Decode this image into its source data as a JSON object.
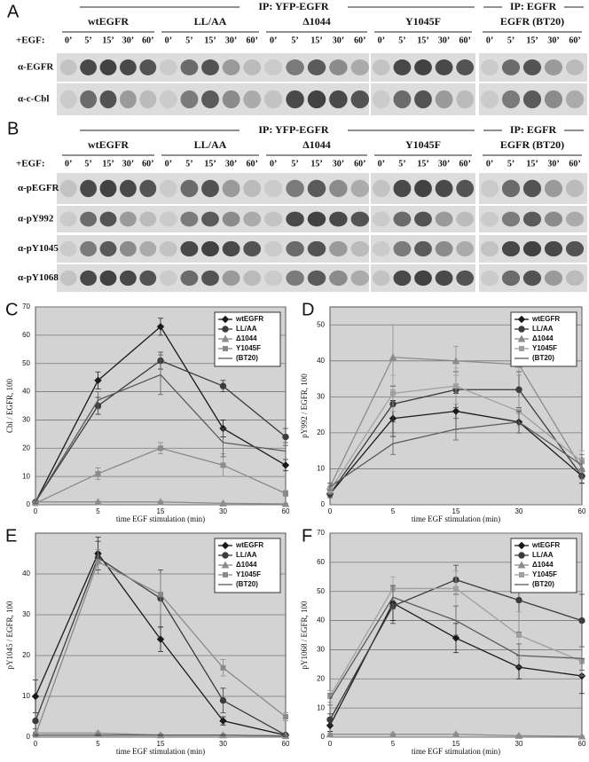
{
  "panel_labels": [
    "A",
    "B",
    "C",
    "D",
    "E",
    "F"
  ],
  "blot_a": {
    "ip_headers": [
      "IP: YFP-EGFR",
      "IP: EGFR"
    ],
    "groups": [
      "wtEGFR",
      "LL/AA",
      "Δ1044",
      "Y1045F",
      "EGFR (BT20)"
    ],
    "egf_label": "+EGF:",
    "times": [
      "0’",
      "5’",
      "15’",
      "30’",
      "60’"
    ],
    "rows": [
      "α-EGFR",
      "α-c-Cbl"
    ]
  },
  "blot_b": {
    "ip_headers": [
      "IP: YFP-EGFR",
      "IP: EGFR"
    ],
    "groups": [
      "wtEGFR",
      "LL/AA",
      "Δ1044",
      "Y1045F",
      "EGFR (BT20)"
    ],
    "egf_label": "+EGF:",
    "times": [
      "0’",
      "5’",
      "15’",
      "30’",
      "60’"
    ],
    "rows": [
      "α-pEGFR",
      "α-pY992",
      "α-pY1045",
      "α-pY1068"
    ]
  },
  "chart_data": [
    {
      "type": "line",
      "xlabel": "time EGF stimulation (min)",
      "ylabel": "Cbl / EGFR, 100",
      "categories": [
        "0",
        "5",
        "15",
        "30",
        "60"
      ],
      "ylim": [
        0,
        70
      ],
      "yticks": [
        0,
        10,
        20,
        30,
        40,
        50,
        60,
        70
      ],
      "grid": true,
      "legend": "upper right",
      "series": [
        {
          "name": "wtEGFR",
          "color": "#1a1a1a",
          "marker": "diamond",
          "values": [
            1,
            44,
            63,
            27,
            14
          ],
          "errors": [
            0.5,
            3,
            3,
            3,
            2
          ]
        },
        {
          "name": "LL/AA",
          "color": "#3c3c3c",
          "marker": "circle",
          "values": [
            1,
            35,
            51,
            42,
            24
          ],
          "errors": [
            0.5,
            3,
            3,
            2,
            3
          ]
        },
        {
          "name": "Δ1044",
          "color": "#8c8c8c",
          "marker": "triangle",
          "values": [
            1,
            1,
            1,
            0.5,
            0.3
          ],
          "errors": [
            0.3,
            0.3,
            0.3,
            0.2,
            0.2
          ]
        },
        {
          "name": "Y1045F",
          "color": "#8a8a8a",
          "marker": "square",
          "values": [
            0.5,
            11,
            20,
            14,
            4
          ],
          "errors": [
            0.3,
            2,
            2,
            4,
            1
          ]
        },
        {
          "name": "(BT20)",
          "color": "#5a5a5a",
          "marker": "none",
          "values": [
            1,
            37,
            46,
            22,
            19
          ],
          "errors": [
            0.5,
            3,
            7,
            5,
            3
          ]
        }
      ]
    },
    {
      "type": "line",
      "xlabel": "time EGF stimulation (min)",
      "ylabel": "pY992 / EGFR, 100",
      "categories": [
        "0",
        "5",
        "15",
        "30",
        "60"
      ],
      "ylim": [
        0,
        55
      ],
      "yticks": [
        0,
        10,
        20,
        30,
        40,
        50
      ],
      "grid": true,
      "legend": "upper right",
      "series": [
        {
          "name": "wtEGFR",
          "color": "#1a1a1a",
          "marker": "diamond",
          "values": [
            3,
            24,
            26,
            23,
            8
          ],
          "errors": [
            1,
            5,
            5,
            3,
            2
          ]
        },
        {
          "name": "LL/AA",
          "color": "#3c3c3c",
          "marker": "circle",
          "values": [
            3,
            28,
            32,
            32,
            8
          ],
          "errors": [
            1,
            5,
            5,
            5,
            2
          ]
        },
        {
          "name": "Δ1044",
          "color": "#8c8c8c",
          "marker": "triangle",
          "values": [
            5,
            41,
            40,
            39,
            10
          ],
          "errors": [
            1,
            9,
            4,
            3,
            3
          ]
        },
        {
          "name": "Y1045F",
          "color": "#a0a0a0",
          "marker": "square",
          "values": [
            4,
            31,
            33,
            26,
            12
          ],
          "errors": [
            1,
            5,
            5,
            4,
            3
          ]
        },
        {
          "name": "(BT20)",
          "color": "#5a5a5a",
          "marker": "none",
          "values": [
            5,
            17,
            21,
            23,
            11
          ],
          "errors": [
            1,
            3,
            3,
            3,
            3
          ]
        }
      ]
    },
    {
      "type": "line",
      "xlabel": "time EGF stimulation (min)",
      "ylabel": "pY1045 / EGFR, 100",
      "categories": [
        "0",
        "5",
        "15",
        "30",
        "60"
      ],
      "ylim": [
        0,
        50
      ],
      "yticks": [
        0,
        10,
        20,
        30,
        40
      ],
      "grid": true,
      "legend": "upper right",
      "series": [
        {
          "name": "wtEGFR",
          "color": "#1a1a1a",
          "marker": "diamond",
          "values": [
            10,
            45,
            24,
            4,
            0.5
          ],
          "errors": [
            4,
            4,
            3,
            1,
            0.3
          ]
        },
        {
          "name": "LL/AA",
          "color": "#3c3c3c",
          "marker": "circle",
          "values": [
            4,
            44,
            34,
            9,
            0.5
          ],
          "errors": [
            2,
            4,
            7,
            3,
            0.3
          ]
        },
        {
          "name": "Δ1044",
          "color": "#8c8c8c",
          "marker": "triangle",
          "values": [
            1,
            1,
            0.5,
            0.5,
            0.3
          ],
          "errors": [
            0.3,
            0.3,
            0.2,
            0.2,
            0.2
          ]
        },
        {
          "name": "Y1045F",
          "color": "#8a8a8a",
          "marker": "square",
          "values": [
            0.5,
            43,
            35,
            17,
            5
          ],
          "errors": [
            0.3,
            3,
            5,
            2,
            1
          ]
        },
        {
          "name": "(BT20)",
          "color": "#5a5a5a",
          "marker": "none",
          "values": [
            0.5,
            0.5,
            0.5,
            0.5,
            0.3
          ],
          "errors": [
            0.2,
            0.2,
            0.2,
            0.2,
            0.2
          ]
        }
      ]
    },
    {
      "type": "line",
      "xlabel": "time EGF stimulation (min)",
      "ylabel": "pY1068 / EGFR, 100",
      "categories": [
        "0",
        "5",
        "15",
        "30",
        "60"
      ],
      "ylim": [
        0,
        70
      ],
      "yticks": [
        0,
        10,
        20,
        30,
        40,
        50,
        60,
        70
      ],
      "grid": true,
      "legend": "upper right",
      "series": [
        {
          "name": "wtEGFR",
          "color": "#1a1a1a",
          "marker": "diamond",
          "values": [
            4,
            46,
            34,
            24,
            21
          ],
          "errors": [
            2,
            6,
            5,
            4,
            6
          ]
        },
        {
          "name": "LL/AA",
          "color": "#3c3c3c",
          "marker": "circle",
          "values": [
            6,
            45,
            54,
            47,
            40
          ],
          "errors": [
            2,
            6,
            5,
            11,
            9
          ]
        },
        {
          "name": "Δ1044",
          "color": "#8c8c8c",
          "marker": "triangle",
          "values": [
            1,
            1,
            1,
            0.5,
            0.3
          ],
          "errors": [
            0.3,
            0.3,
            0.3,
            0.2,
            0.2
          ]
        },
        {
          "name": "Y1045F",
          "color": "#a0a0a0",
          "marker": "square",
          "values": [
            14,
            51,
            51,
            35,
            26
          ],
          "errors": [
            2,
            4,
            6,
            8,
            5
          ]
        },
        {
          "name": "(BT20)",
          "color": "#5a5a5a",
          "marker": "none",
          "values": [
            13,
            48,
            40,
            28,
            27
          ],
          "errors": [
            2,
            4,
            5,
            4,
            4
          ]
        }
      ]
    }
  ]
}
